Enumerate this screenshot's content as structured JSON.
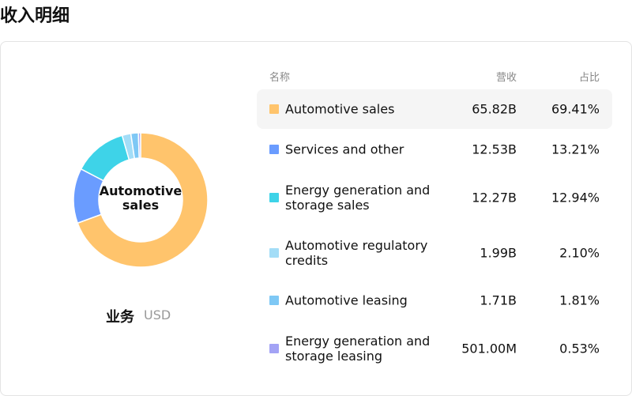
{
  "header": {
    "title": "收入明细"
  },
  "chart_data": {
    "type": "pie",
    "center_label": "Automotive sales",
    "caption": "业务",
    "unit": "USD",
    "categories": [
      "Automotive sales",
      "Services and other",
      "Energy generation and storage sales",
      "Automotive regulatory credits",
      "Automotive leasing",
      "Energy generation and storage leasing"
    ],
    "values": [
      69.41,
      13.21,
      12.94,
      2.1,
      1.81,
      0.53
    ],
    "value_labels": [
      "69.41%",
      "13.21%",
      "12.94%",
      "2.10%",
      "1.81%",
      "0.53%"
    ],
    "colors": [
      "#ffc46c",
      "#6a9cff",
      "#3ed3e8",
      "#a3ddf7",
      "#7ec8f5",
      "#a3a3f5"
    ]
  },
  "table": {
    "headers": [
      "名称",
      "营收",
      "占比"
    ],
    "revenue": [
      "65.82B",
      "12.53B",
      "12.27B",
      "1.99B",
      "1.71B",
      "501.00M"
    ]
  }
}
